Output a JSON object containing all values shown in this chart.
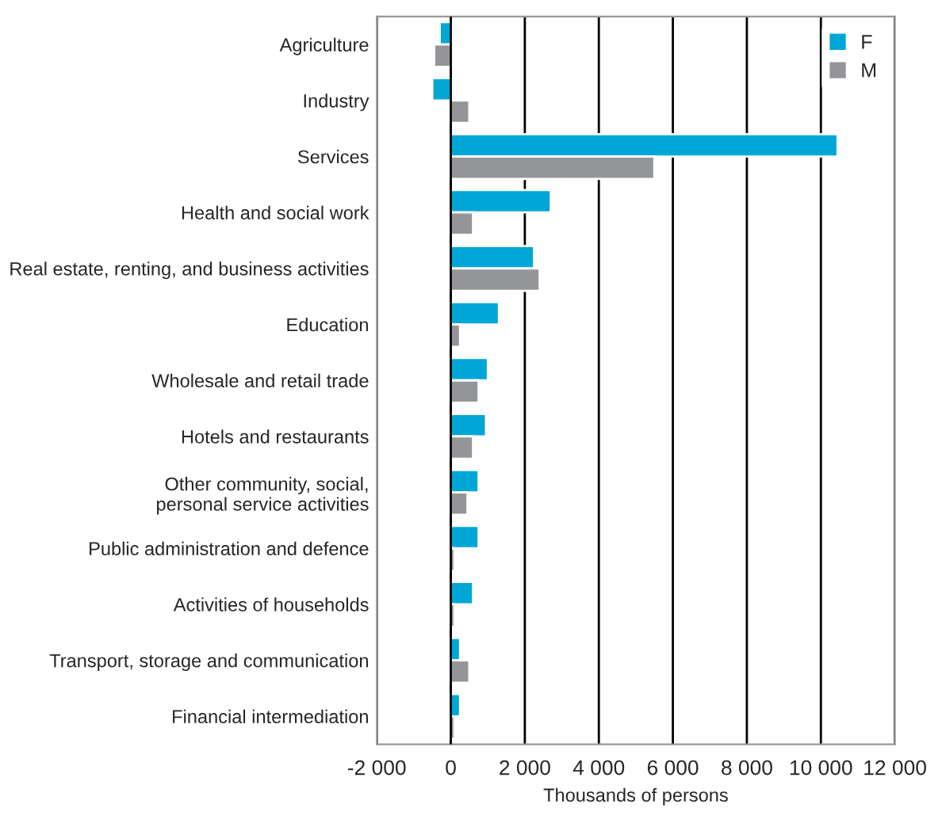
{
  "chart_data": {
    "type": "bar",
    "orientation": "horizontal",
    "categories": [
      "Agriculture",
      "Industry",
      "Services",
      "Health and social work",
      "Real estate, renting, and business activities",
      "Education",
      "Wholesale and retail trade",
      "Hotels and restaurants",
      "Other community, social,\npersonal service activities",
      "Public administration and defence",
      "Activities of households",
      "Transport, storage and communication",
      "Financial intermediation"
    ],
    "series": [
      {
        "name": "F",
        "color": "#00a6d6",
        "values": [
          -300,
          -500,
          10450,
          2700,
          2250,
          1300,
          1000,
          950,
          750,
          750,
          600,
          250,
          250
        ]
      },
      {
        "name": "M",
        "color": "#949599",
        "values": [
          -450,
          500,
          5500,
          600,
          2400,
          250,
          750,
          600,
          450,
          100,
          100,
          500,
          100
        ]
      }
    ],
    "xlabel": "Thousands of persons",
    "xlim": [
      -2000,
      12000
    ],
    "xticks": [
      {
        "value": -2000,
        "label": "-2 000"
      },
      0,
      {
        "value": 2000,
        "label": "2 000"
      },
      {
        "value": 4000,
        "label": "4 000"
      },
      {
        "value": 6000,
        "label": "6 000"
      },
      {
        "value": 8000,
        "label": "8 000"
      },
      {
        "value": 10000,
        "label": "10 000"
      },
      {
        "value": 12000,
        "label": "12 000"
      }
    ],
    "grid": "x",
    "legend": "top right"
  }
}
